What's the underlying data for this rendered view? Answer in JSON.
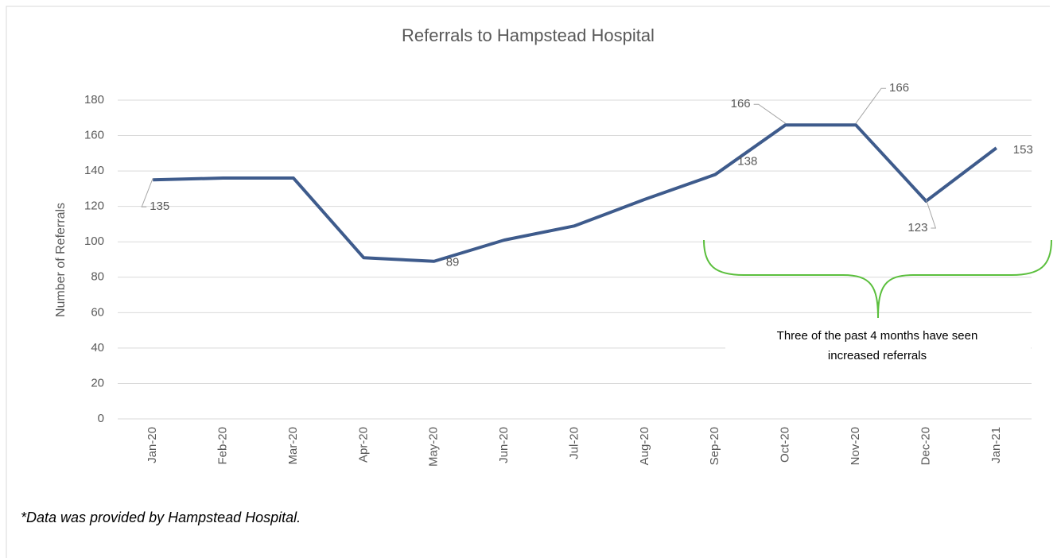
{
  "chart_data": {
    "type": "line",
    "title": "Referrals to Hampstead Hospital",
    "y_label": "Number of Referrals",
    "categories": [
      "Jan-20",
      "Feb-20",
      "Mar-20",
      "Apr-20",
      "May-20",
      "Jun-20",
      "Jul-20",
      "Aug-20",
      "Sep-20",
      "Oct-20",
      "Nov-20",
      "Dec-20",
      "Jan-21"
    ],
    "series": [
      {
        "name": "Referrals",
        "color": "#3e5b8c",
        "values": [
          135,
          136,
          136,
          91,
          89,
          101,
          109,
          124,
          138,
          166,
          166,
          123,
          153
        ],
        "value_labels": [
          "135",
          null,
          null,
          null,
          "89",
          null,
          null,
          null,
          "138",
          "166",
          "166",
          "123",
          "153"
        ]
      }
    ],
    "ylim": [
      0,
      180
    ],
    "yticks": [
      0,
      20,
      40,
      60,
      80,
      100,
      120,
      140,
      160,
      180
    ],
    "grid": true,
    "annotation": [
      "Three of the past 4 months have seen",
      "increased referrals"
    ],
    "annotation_color": "#5bbf3d",
    "footnote": "*Data was provided by Hampstead Hospital."
  }
}
